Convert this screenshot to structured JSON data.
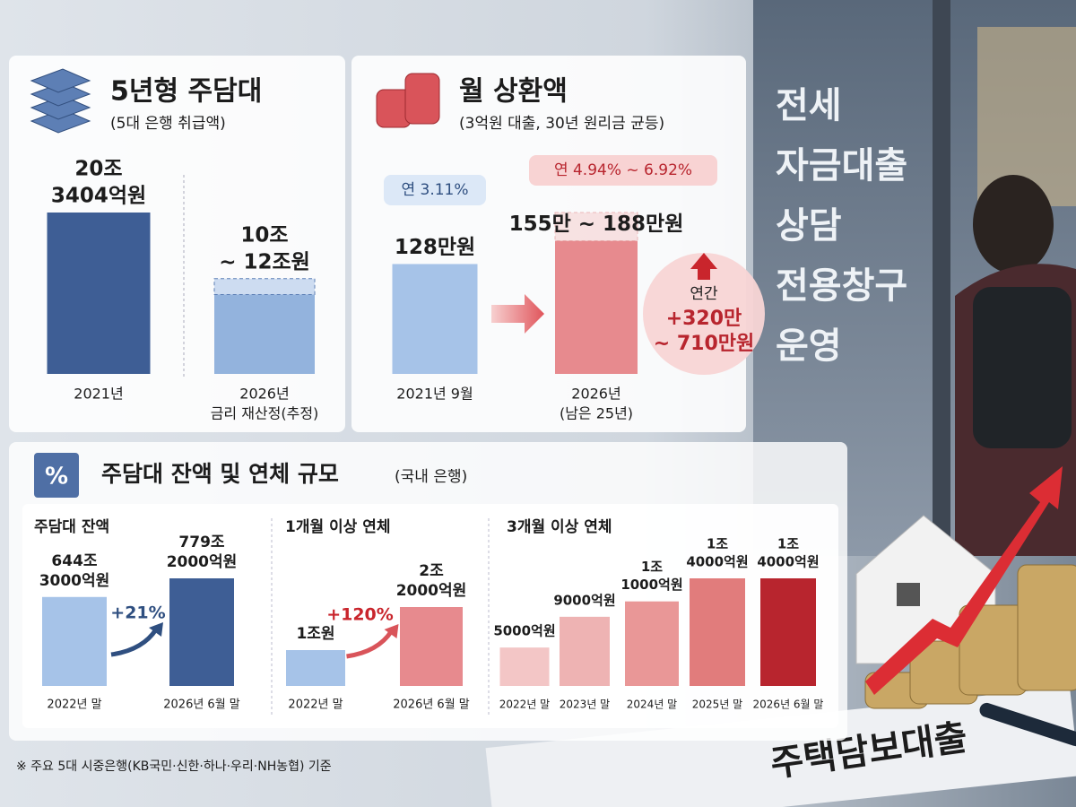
{
  "side_text": [
    "전세",
    "자금대출",
    "상담",
    "전용창구",
    "운영"
  ],
  "document_text": "주택담보대출",
  "section": {
    "title": "주담대 잔액 및 연체 규모",
    "subtitle": "(국내 은행)"
  },
  "footnote": "※ 주요 5대 시중은행(KB국민·신한·하나·우리·NH농협) 기준",
  "chart_data": [
    {
      "type": "bar",
      "title": "5년형 주담대",
      "subtitle": "(5대 은행 취급액)",
      "categories": [
        [
          "2021년"
        ],
        [
          "2026년",
          "금리 재산정(추정)"
        ]
      ],
      "values": [
        203404,
        100000
      ],
      "upper_values": [
        null,
        120000
      ],
      "value_labels": [
        [
          "20조",
          "3404억원"
        ],
        [
          "10조",
          "~ 12조원"
        ]
      ],
      "colors": [
        "#3e5e95",
        "#93b3dd"
      ]
    },
    {
      "type": "bar",
      "title": "월 상환액",
      "subtitle": "(3억원 대출, 30년 원리금 균등)",
      "categories": [
        [
          "2021년 9월"
        ],
        [
          "2026년",
          "(남은 25년)"
        ]
      ],
      "values": [
        128,
        155
      ],
      "upper_values": [
        null,
        188
      ],
      "value_labels": [
        [
          "128만원"
        ],
        [
          "155만 ~ 188만원"
        ]
      ],
      "rate_labels": [
        "연 3.11%",
        "연 4.94% ~ 6.92%"
      ],
      "annotation": [
        "연간",
        "+320만",
        "~ 710만원"
      ],
      "colors": [
        "#a6c3e8",
        "#e78a8e"
      ]
    },
    {
      "type": "bar",
      "title": "주담대 잔액",
      "categories": [
        [
          "2022년 말"
        ],
        [
          "2026년 6월 말"
        ]
      ],
      "values": [
        6443000,
        7792000
      ],
      "value_labels": [
        [
          "644조",
          "3000억원"
        ],
        [
          "779조",
          "2000억원"
        ]
      ],
      "change_label": "+21%",
      "colors": [
        "#a6c3e8",
        "#3e5e95"
      ]
    },
    {
      "type": "bar",
      "title": "1개월 이상 연체",
      "categories": [
        [
          "2022년 말"
        ],
        [
          "2026년 6월 말"
        ]
      ],
      "values": [
        10000,
        22000
      ],
      "value_labels": [
        [
          "1조원"
        ],
        [
          "2조",
          "2000억원"
        ]
      ],
      "change_label": "+120%",
      "colors": [
        "#a6c3e8",
        "#e78a8e"
      ]
    },
    {
      "type": "bar",
      "title": "3개월 이상 연체",
      "categories": [
        [
          "2022년 말"
        ],
        [
          "2023년 말"
        ],
        [
          "2024년 말"
        ],
        [
          "2025년 말"
        ],
        [
          "2026년 6월 말"
        ]
      ],
      "values": [
        5000,
        9000,
        11000,
        14000,
        14000
      ],
      "value_labels": [
        [
          "5000억원"
        ],
        [
          "9000억원"
        ],
        [
          "1조",
          "1000억원"
        ],
        [
          "1조",
          "4000억원"
        ],
        [
          "1조",
          "4000억원"
        ]
      ],
      "colors": [
        "#f3c6c6",
        "#eeb3b3",
        "#e99797",
        "#e17c7c",
        "#b8252e"
      ]
    }
  ]
}
